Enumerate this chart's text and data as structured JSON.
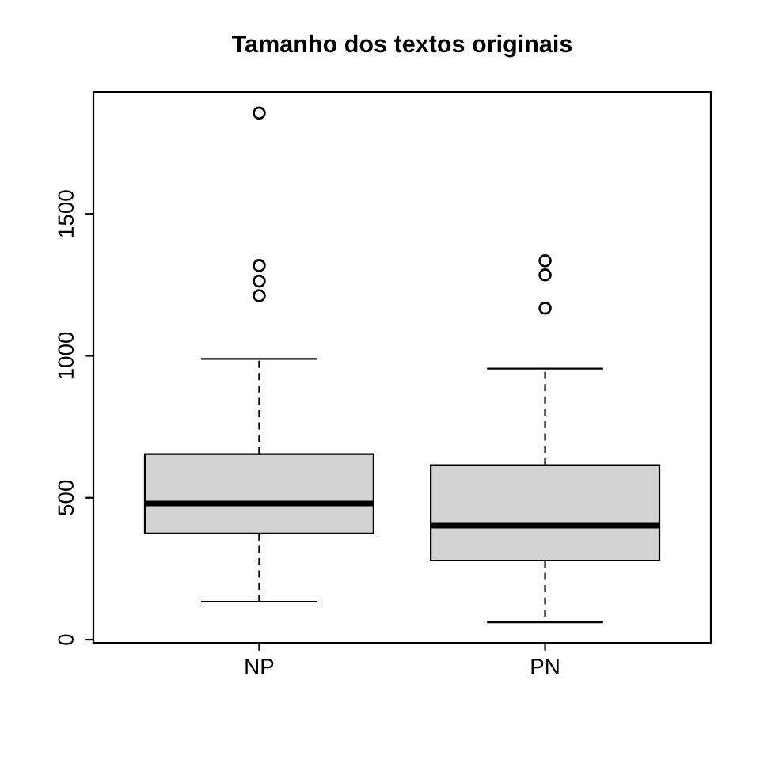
{
  "chart_data": {
    "type": "box",
    "title": "Tamanho dos textos originais",
    "categories": [
      "NP",
      "PN"
    ],
    "boxes": [
      {
        "low": 134,
        "q1": 374,
        "median": 480,
        "q3": 654,
        "high": 989,
        "outliers": [
          1855,
          1318,
          1263,
          1212
        ]
      },
      {
        "low": 61,
        "q1": 279,
        "median": 402,
        "q3": 615,
        "high": 955,
        "outliers": [
          1335,
          1285,
          1168
        ]
      }
    ],
    "color": "#d3d3d3",
    "ylim": [
      -11,
      1930
    ],
    "yticks": [
      0,
      500,
      1000,
      1500
    ],
    "grid": false
  }
}
